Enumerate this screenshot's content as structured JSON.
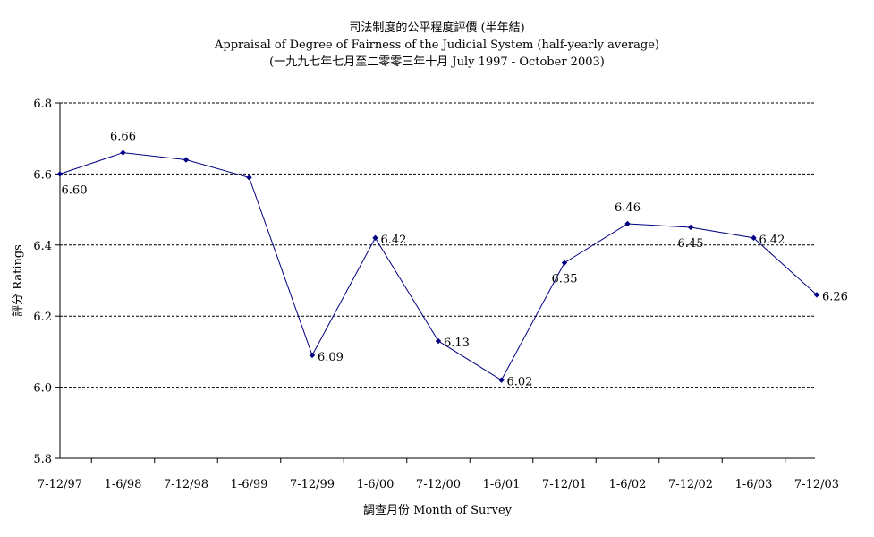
{
  "chart_data": {
    "type": "line",
    "title": "司法制度的公平程度評價 (半年結)",
    "subtitle": "Appraisal of Degree of Fairness of the Judicial System (half-yearly average)",
    "period": "(一九九七年七月至二零零三年十月 July 1997 - October 2003)",
    "xlabel": "調查月份 Month of Survey",
    "ylabel": "評分 Ratings",
    "categories": [
      "7-12/97",
      "1-6/98",
      "7-12/98",
      "1-6/99",
      "7-12/99",
      "1-6/00",
      "7-12/00",
      "1-6/01",
      "7-12/01",
      "1-6/02",
      "7-12/02",
      "1-6/03",
      "7-12/03"
    ],
    "values": [
      6.6,
      6.66,
      6.64,
      6.59,
      6.09,
      6.42,
      6.13,
      6.02,
      6.35,
      6.46,
      6.45,
      6.42,
      6.26
    ],
    "data_labels": [
      "6.60",
      "6.66",
      "",
      "",
      "6.09",
      "6.42",
      "6.13",
      "6.02",
      "6.35",
      "6.46",
      "6.45",
      "6.42",
      "6.26"
    ],
    "label_positions": [
      "below",
      "above",
      "none",
      "none",
      "right",
      "right",
      "right",
      "right",
      "below",
      "above",
      "below",
      "right",
      "right"
    ],
    "ylim": [
      5.8,
      6.8
    ],
    "yticks": [
      "5.8",
      "6.0",
      "6.2",
      "6.4",
      "6.6",
      "6.8"
    ],
    "grid": "horizontal dashed",
    "line_color": "#000080",
    "marker": "diamond"
  }
}
